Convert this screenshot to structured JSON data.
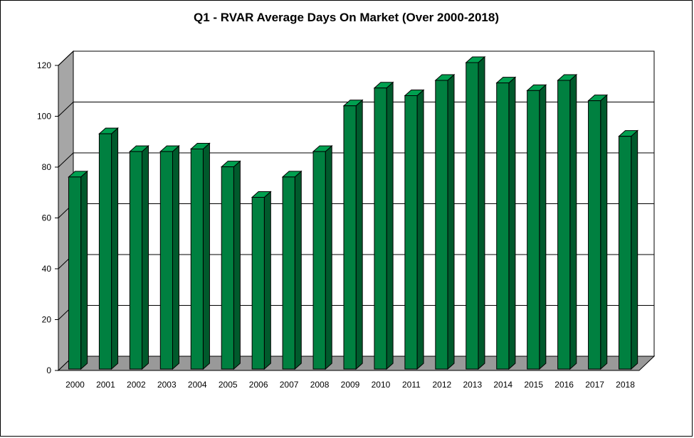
{
  "chart_data": {
    "type": "bar",
    "title": "Q1 - RVAR Average Days On Market (Over 2000-2018)",
    "xlabel": "",
    "ylabel": "",
    "categories": [
      "2000",
      "2001",
      "2002",
      "2003",
      "2004",
      "2005",
      "2006",
      "2007",
      "2008",
      "2009",
      "2010",
      "2011",
      "2012",
      "2013",
      "2014",
      "2015",
      "2016",
      "2017",
      "2018"
    ],
    "values": [
      75,
      92,
      85,
      85,
      86,
      79,
      67,
      75,
      85,
      103,
      110,
      107,
      113,
      120,
      112,
      109,
      113,
      105,
      91
    ],
    "ylim": [
      0,
      120
    ],
    "yticks": [
      0,
      20,
      40,
      60,
      80,
      100,
      120
    ],
    "grid": true,
    "legend": "none",
    "style": "3d-column",
    "colors": {
      "bar_front": "#008040",
      "bar_side": "#005a2c",
      "bar_top": "#00a050",
      "wall_left": "#a6a6a6",
      "floor": "#999999",
      "back_wall": "#ffffff"
    }
  }
}
